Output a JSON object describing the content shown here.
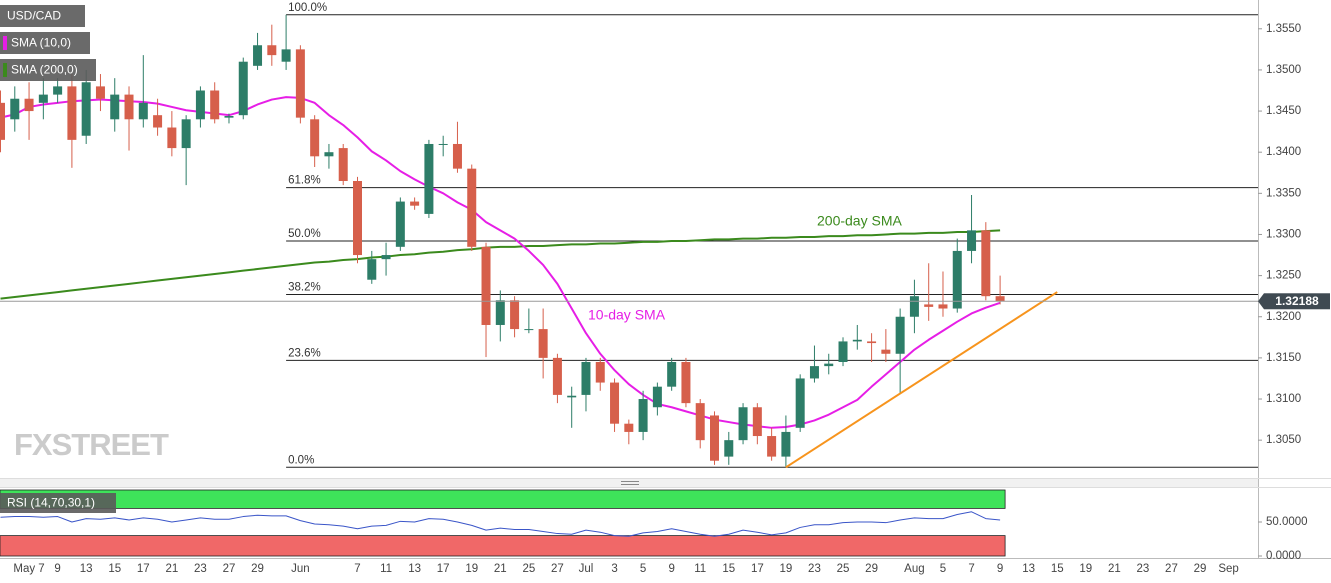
{
  "chart_data": {
    "type": "candlestick",
    "title": "USD/CAD",
    "categories": [
      null,
      null,
      "May 7",
      null,
      "9",
      null,
      "13",
      null,
      "15",
      null,
      "17",
      null,
      "21",
      null,
      "23",
      null,
      "27",
      null,
      "29",
      null,
      null,
      "Jun",
      null,
      null,
      null,
      "7",
      null,
      "11",
      null,
      "13",
      null,
      "17",
      null,
      "19",
      null,
      "21",
      null,
      "25",
      null,
      "27",
      null,
      "Jul",
      null,
      "3",
      null,
      "5",
      null,
      "9",
      null,
      "11",
      null,
      "15",
      null,
      "17",
      null,
      "19",
      null,
      "23",
      null,
      "25",
      null,
      "29",
      null,
      null,
      "Aug",
      null,
      "5",
      null,
      "7",
      null,
      "9",
      null,
      "13",
      null,
      "15",
      null,
      "19",
      null,
      "21",
      null,
      "23",
      null,
      "27",
      null,
      "29",
      null,
      "Sep",
      null
    ],
    "open": [
      1.346,
      1.344,
      1.3465,
      1.346,
      1.347,
      1.348,
      1.342,
      1.348,
      1.344,
      1.347,
      1.344,
      1.3445,
      1.343,
      1.3405,
      1.344,
      1.3475,
      1.3442,
      1.3445,
      1.3505,
      1.353,
      1.351,
      1.3525,
      1.344,
      1.3395,
      1.3405,
      1.3365,
      1.3245,
      1.327,
      1.3285,
      1.334,
      1.3325,
      1.341,
      1.341,
      1.338,
      1.3285,
      1.319,
      1.322,
      1.3185,
      1.3185,
      1.315,
      1.3102,
      1.3105,
      1.3145,
      1.312,
      1.307,
      1.306,
      1.309,
      1.3115,
      1.3145,
      1.3095,
      1.308,
      1.303,
      1.305,
      1.309,
      1.3055,
      1.303,
      1.3065,
      1.3125,
      1.314,
      1.3145,
      1.317,
      1.317,
      1.316,
      1.3155,
      1.32,
      1.3215,
      1.3215,
      1.321,
      1.328,
      1.3305,
      1.3225,
      null,
      null,
      null,
      null,
      null,
      null,
      null,
      null,
      null,
      null,
      null,
      null,
      null,
      null,
      null,
      null,
      null
    ],
    "high": [
      1.3475,
      1.348,
      1.3485,
      1.349,
      1.349,
      1.3495,
      1.35,
      1.3495,
      1.349,
      1.348,
      1.3518,
      1.3465,
      1.345,
      1.3445,
      1.348,
      1.3485,
      1.3447,
      1.3515,
      1.3545,
      1.3555,
      1.3567,
      1.353,
      1.3445,
      1.341,
      1.341,
      1.337,
      1.328,
      1.329,
      1.3345,
      1.3345,
      1.3415,
      1.342,
      1.3437,
      1.3385,
      1.329,
      1.3232,
      1.3225,
      1.321,
      1.321,
      1.3155,
      1.3115,
      1.315,
      1.315,
      1.3125,
      1.3075,
      1.311,
      1.312,
      1.315,
      1.315,
      1.31,
      1.3085,
      1.306,
      1.3095,
      1.3095,
      1.3065,
      1.308,
      1.313,
      1.3165,
      1.3155,
      1.3175,
      1.319,
      1.318,
      1.3185,
      1.321,
      1.3245,
      1.3265,
      1.3255,
      1.3295,
      1.3348,
      1.3315,
      1.325,
      null,
      null,
      null,
      null,
      null,
      null,
      null,
      null,
      null,
      null,
      null,
      null,
      null,
      null,
      null,
      null,
      null
    ],
    "low": [
      1.34,
      1.3425,
      1.3415,
      1.344,
      1.346,
      1.3381,
      1.341,
      1.345,
      1.3425,
      1.3402,
      1.343,
      1.342,
      1.3395,
      1.336,
      1.343,
      1.3435,
      1.3435,
      1.344,
      1.35,
      1.3505,
      1.35,
      1.3435,
      1.3382,
      1.338,
      1.336,
      1.3265,
      1.324,
      1.325,
      1.328,
      1.333,
      1.332,
      1.3395,
      1.3375,
      1.328,
      1.3151,
      1.317,
      1.3175,
      1.318,
      1.3125,
      1.3095,
      1.3065,
      1.3085,
      1.311,
      1.306,
      1.3045,
      1.305,
      1.308,
      1.311,
      1.309,
      1.304,
      1.302,
      1.302,
      1.3045,
      1.3045,
      1.3025,
      1.3017,
      1.306,
      1.312,
      1.313,
      1.314,
      1.316,
      1.3145,
      1.3145,
      1.3107,
      1.318,
      1.3195,
      1.32,
      1.3205,
      1.3265,
      1.322,
      1.3215,
      null,
      null,
      null,
      null,
      null,
      null,
      null,
      null,
      null,
      null,
      null,
      null,
      null,
      null,
      null,
      null,
      null
    ],
    "close": [
      1.3415,
      1.3465,
      1.345,
      1.347,
      1.348,
      1.3415,
      1.3485,
      1.3465,
      1.347,
      1.344,
      1.346,
      1.343,
      1.3405,
      1.344,
      1.3475,
      1.344,
      1.3444,
      1.351,
      1.353,
      1.3518,
      1.3525,
      1.3442,
      1.3395,
      1.34,
      1.3365,
      1.3275,
      1.327,
      1.3275,
      1.334,
      1.3335,
      1.341,
      1.341,
      1.338,
      1.3285,
      1.319,
      1.322,
      1.3185,
      1.3185,
      1.315,
      1.3105,
      1.3104,
      1.3145,
      1.312,
      1.307,
      1.306,
      1.31,
      1.3115,
      1.3145,
      1.3095,
      1.305,
      1.3025,
      1.305,
      1.309,
      1.3055,
      1.303,
      1.306,
      1.3125,
      1.314,
      1.3143,
      1.317,
      1.3172,
      1.3168,
      1.3155,
      1.32,
      1.3225,
      1.3212,
      1.321,
      1.328,
      1.3305,
      1.3225,
      1.32188,
      null,
      null,
      null,
      null,
      null,
      null,
      null,
      null,
      null,
      null,
      null,
      null,
      null,
      null,
      null,
      null,
      null
    ],
    "up_color": "#2d7d68",
    "down_color": "#d65f4b",
    "series": [
      {
        "name": "SMA (10,0)",
        "color": "#e61ee6",
        "values": [
          1.3442,
          1.3446,
          1.3455,
          1.3458,
          1.346,
          1.3462,
          1.3463,
          1.3464,
          1.3463,
          1.3462,
          1.3461,
          1.3459,
          1.3455,
          1.3451,
          1.3449,
          1.3447,
          1.3445,
          1.345,
          1.3458,
          1.3464,
          1.3467,
          1.3466,
          1.346,
          1.3445,
          1.3433,
          1.3418,
          1.3401,
          1.339,
          1.3377,
          1.3367,
          1.3358,
          1.335,
          1.3339,
          1.333,
          1.3315,
          1.3305,
          1.3295,
          1.328,
          1.3263,
          1.324,
          1.321,
          1.318,
          1.3155,
          1.3135,
          1.3118,
          1.3105,
          1.3094,
          1.309,
          1.3085,
          1.308,
          1.3075,
          1.3072,
          1.3069,
          1.3067,
          1.3065,
          1.3066,
          1.3069,
          1.3074,
          1.3081,
          1.309,
          1.3099,
          1.3115,
          1.313,
          1.3145,
          1.316,
          1.3172,
          1.3183,
          1.3194,
          1.3204,
          1.3211,
          1.3217,
          null,
          null,
          null,
          null,
          null,
          null,
          null,
          null,
          null,
          null,
          null,
          null,
          null,
          null,
          null,
          null,
          null
        ]
      },
      {
        "name": "SMA (200,0)",
        "color": "#3b8a1d",
        "values": [
          1.3222,
          1.3224,
          1.3226,
          1.3228,
          1.323,
          1.3232,
          1.3234,
          1.3236,
          1.3238,
          1.324,
          1.3242,
          1.3244,
          1.3246,
          1.3248,
          1.325,
          1.3252,
          1.3254,
          1.3256,
          1.3258,
          1.326,
          1.3262,
          1.3264,
          1.3266,
          1.3267,
          1.3269,
          1.327,
          1.3272,
          1.3273,
          1.3275,
          1.3276,
          1.3278,
          1.3279,
          1.3281,
          1.3282,
          1.3284,
          1.3285,
          1.3285,
          1.3286,
          1.3286,
          1.3287,
          1.3288,
          1.3288,
          1.3289,
          1.3289,
          1.329,
          1.3291,
          1.3291,
          1.3292,
          1.3292,
          1.3293,
          1.3294,
          1.3294,
          1.3295,
          1.3295,
          1.3296,
          1.3296,
          1.3297,
          1.3297,
          1.3298,
          1.3298,
          1.3299,
          1.3299,
          1.33,
          1.3301,
          1.3301,
          1.3302,
          1.3302,
          1.3303,
          1.3303,
          1.3304,
          1.3305,
          null,
          null,
          null,
          null,
          null,
          null,
          null,
          null,
          null,
          null,
          null,
          null,
          null,
          null,
          null,
          null,
          null
        ]
      }
    ],
    "annotations": [
      {
        "text": "200-day SMA",
        "color": "#3b8a1d"
      },
      {
        "text": "10-day SMA",
        "color": "#e61ee6"
      }
    ],
    "fib_levels": [
      {
        "label": "100.0%",
        "value": 1.3567
      },
      {
        "label": "61.8%",
        "value": 1.3357
      },
      {
        "label": "50.0%",
        "value": 1.3292
      },
      {
        "label": "38.2%",
        "value": 1.3227
      },
      {
        "label": "23.6%",
        "value": 1.3147
      },
      {
        "label": "0.0%",
        "value": 1.3017
      }
    ],
    "fib_color": "#222222",
    "trendline": {
      "color": "#f7941d",
      "x": [
        55,
        74
      ],
      "y": [
        1.3017,
        1.323
      ]
    },
    "ylim": [
      1.3004,
      1.3585
    ],
    "yticks": [
      {
        "value": 1.355,
        "label": "1.3550"
      },
      {
        "value": 1.35,
        "label": "1.3500"
      },
      {
        "value": 1.345,
        "label": "1.3450"
      },
      {
        "value": 1.34,
        "label": "1.3400"
      },
      {
        "value": 1.335,
        "label": "1.3350"
      },
      {
        "value": 1.33,
        "label": "1.3300"
      },
      {
        "value": 1.325,
        "label": "1.3250"
      },
      {
        "value": 1.32,
        "label": "1.3200"
      },
      {
        "value": 1.315,
        "label": "1.3150"
      },
      {
        "value": 1.31,
        "label": "1.3100"
      },
      {
        "value": 1.305,
        "label": "1.3050"
      }
    ],
    "last_price": 1.32188,
    "watermark": "FXSTREET",
    "rsi": {
      "title": "RSI (14,70,30,1)",
      "color": "#3a55c8",
      "values": [
        57,
        58,
        58,
        57,
        58,
        50,
        55,
        54,
        56,
        53,
        56,
        54,
        50,
        53,
        56,
        54,
        54,
        58,
        60,
        59,
        59,
        52,
        47,
        46,
        44,
        40,
        44,
        45,
        51,
        50,
        55,
        54,
        50,
        45,
        38,
        41,
        39,
        39,
        36,
        33,
        32,
        38,
        35,
        30,
        29,
        34,
        36,
        40,
        36,
        32,
        29,
        32,
        38,
        35,
        31,
        34,
        42,
        46,
        46,
        49,
        50,
        50,
        49,
        53,
        56,
        55,
        55,
        61,
        65,
        55,
        53,
        null,
        null,
        null,
        null,
        null,
        null,
        null,
        null,
        null,
        null,
        null,
        null,
        null,
        null,
        null,
        null,
        null
      ],
      "ylim": [
        0,
        100
      ],
      "yticks": [
        {
          "value": 50,
          "label": "50.0000"
        },
        {
          "value": 0,
          "label": "0.0000"
        }
      ],
      "upper": 70,
      "lower": 30,
      "upper_color": "#3ee35a",
      "lower_color": "#f06868"
    }
  }
}
